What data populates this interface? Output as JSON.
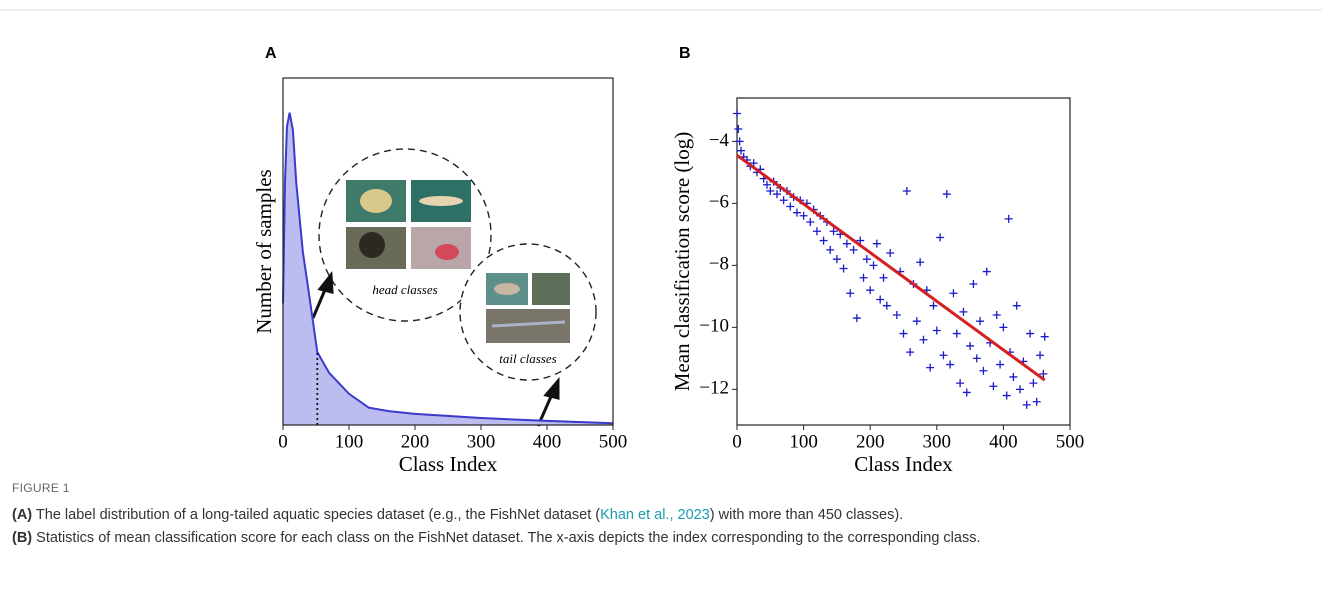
{
  "chart_data": [
    {
      "type": "area",
      "panel": "A",
      "xlabel": "Class Index",
      "ylabel": "Number of samples",
      "x": [
        0,
        3,
        6,
        10,
        15,
        20,
        30,
        40,
        52,
        70,
        100,
        130,
        160,
        200,
        300,
        400,
        500
      ],
      "values": [
        35,
        70,
        86,
        90,
        85,
        70,
        50,
        37,
        21,
        15,
        9,
        5,
        4,
        3.2,
        2,
        1.2,
        0.5
      ],
      "color": "#3a3acb",
      "fill": "#bcbcf0",
      "threshold_x": 52,
      "xlim": [
        0,
        500
      ],
      "ylim": [
        0,
        100
      ],
      "xticks": [
        0,
        100,
        200,
        300,
        400,
        500
      ],
      "annotations": [
        "head classes",
        "tail classes"
      ]
    },
    {
      "type": "scatter",
      "panel": "B",
      "xlabel": "Class Index",
      "ylabel": "Mean classification score (log)",
      "x": [
        0,
        2,
        4,
        6,
        10,
        15,
        20,
        25,
        30,
        35,
        40,
        45,
        50,
        55,
        60,
        65,
        70,
        75,
        80,
        85,
        90,
        95,
        100,
        105,
        110,
        115,
        120,
        125,
        130,
        135,
        140,
        145,
        150,
        155,
        160,
        165,
        170,
        175,
        180,
        185,
        190,
        195,
        200,
        205,
        210,
        215,
        220,
        225,
        230,
        240,
        245,
        250,
        255,
        260,
        265,
        270,
        275,
        280,
        285,
        290,
        295,
        300,
        305,
        310,
        315,
        320,
        325,
        330,
        335,
        340,
        345,
        350,
        355,
        360,
        365,
        370,
        375,
        380,
        385,
        390,
        395,
        400,
        405,
        408,
        410,
        415,
        420,
        425,
        430,
        435,
        440,
        445,
        450,
        455,
        460,
        462
      ],
      "values": [
        -3.1,
        -3.6,
        -4.0,
        -4.3,
        -4.5,
        -4.6,
        -4.8,
        -4.7,
        -5.0,
        -4.9,
        -5.2,
        -5.4,
        -5.6,
        -5.3,
        -5.7,
        -5.5,
        -5.9,
        -5.6,
        -6.1,
        -5.8,
        -6.3,
        -5.9,
        -6.4,
        -6.0,
        -6.6,
        -6.2,
        -6.9,
        -6.4,
        -7.2,
        -6.6,
        -7.5,
        -6.9,
        -7.8,
        -7.0,
        -8.1,
        -7.3,
        -8.9,
        -7.5,
        -9.7,
        -7.2,
        -8.4,
        -7.8,
        -8.8,
        -8.0,
        -7.3,
        -9.1,
        -8.4,
        -9.3,
        -7.6,
        -9.6,
        -8.2,
        -10.2,
        -5.6,
        -10.8,
        -8.6,
        -9.8,
        -7.9,
        -10.4,
        -8.8,
        -11.3,
        -9.3,
        -10.1,
        -7.1,
        -10.9,
        -5.7,
        -11.2,
        -8.9,
        -10.2,
        -11.8,
        -9.5,
        -12.1,
        -10.6,
        -8.6,
        -11.0,
        -9.8,
        -11.4,
        -8.2,
        -10.5,
        -11.9,
        -9.6,
        -11.2,
        -10.0,
        -12.2,
        -6.5,
        -10.8,
        -11.6,
        -9.3,
        -12.0,
        -11.1,
        -12.5,
        -10.2,
        -11.8,
        -12.4,
        -10.9,
        -11.5,
        -10.3
      ],
      "color": "#1a1acc",
      "fit": {
        "x": [
          0,
          462
        ],
        "values": [
          -4.45,
          -11.7
        ],
        "color": "#d42020"
      },
      "xlim": [
        0,
        500
      ],
      "ylim": [
        -13.15,
        -2.6
      ],
      "xticks": [
        0,
        100,
        200,
        300,
        400,
        500
      ],
      "yticks": [
        {
          "value": -4,
          "label": "−4"
        },
        {
          "value": -6,
          "label": "−6"
        },
        {
          "value": -8,
          "label": "−8"
        },
        {
          "value": -10,
          "label": "−10"
        },
        {
          "value": -12,
          "label": "−12"
        }
      ]
    }
  ],
  "caption": {
    "label": "FIGURE 1",
    "a_tag": "(A)",
    "a_prefix": " The label distribution of a long-tailed aquatic species dataset (e.g., the FishNet dataset (",
    "a_link": "Khan et al., 2023",
    "a_suffix": ") with more than 450 classes).",
    "b_tag": "(B)",
    "b_text": " Statistics of mean classification score for each class on the FishNet dataset. The x-axis depicts the index corresponding to the corresponding class."
  }
}
